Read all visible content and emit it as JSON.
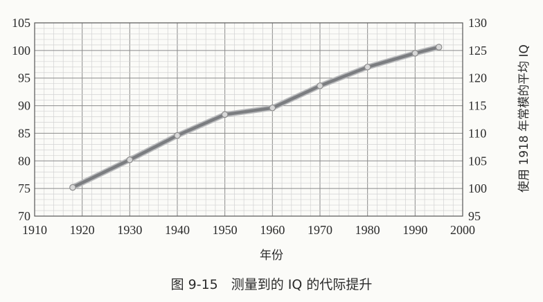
{
  "chart_data": {
    "type": "line",
    "caption": "图 9-15　测量到的 IQ 的代际提升",
    "xlabel": "年份",
    "ylabel": "",
    "y2label": "使用 1918 年常模的平均 IQ",
    "xlim": [
      1910,
      2000
    ],
    "ylim": [
      70,
      105
    ],
    "y2lim": [
      95,
      130
    ],
    "xticks": [
      1910,
      1920,
      1930,
      1940,
      1950,
      1960,
      1970,
      1980,
      1990,
      2000
    ],
    "yticks": [
      70,
      75,
      80,
      85,
      90,
      95,
      100,
      105
    ],
    "y2ticks": [
      95,
      100,
      105,
      110,
      115,
      120,
      125,
      130
    ],
    "grid": true,
    "series": [
      {
        "x": [
          1918,
          1930,
          1940,
          1950,
          1960,
          1970,
          1980,
          1990,
          1995
        ],
        "values": [
          75.2,
          80.2,
          84.6,
          88.4,
          89.6,
          93.6,
          97.0,
          99.5,
          100.6
        ],
        "color": "#7b7d80"
      }
    ]
  }
}
